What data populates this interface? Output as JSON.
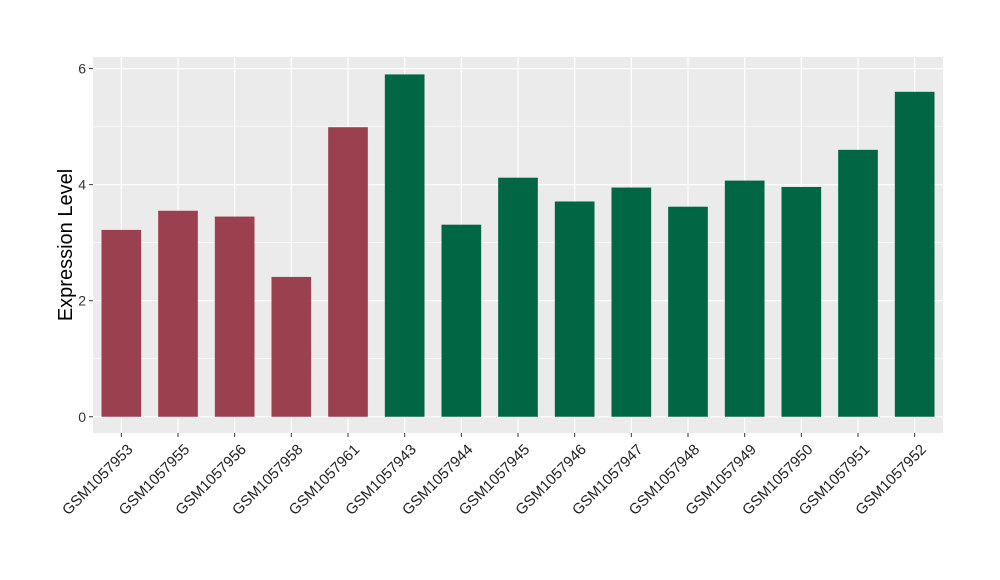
{
  "chart_data": {
    "type": "bar",
    "title": "",
    "xlabel": "",
    "ylabel": "Expression Level",
    "ylim": [
      -0.28,
      6.2
    ],
    "yticks": [
      0,
      2,
      4,
      6
    ],
    "grid": true,
    "legend": "none",
    "categories": [
      "GSM1057953",
      "GSM1057955",
      "GSM1057956",
      "GSM1057958",
      "GSM1057961",
      "GSM1057943",
      "GSM1057944",
      "GSM1057945",
      "GSM1057946",
      "GSM1057947",
      "GSM1057948",
      "GSM1057949",
      "GSM1057950",
      "GSM1057951",
      "GSM1057952"
    ],
    "values": [
      3.22,
      3.55,
      3.45,
      2.41,
      4.99,
      5.9,
      3.31,
      4.12,
      3.71,
      3.95,
      3.62,
      4.07,
      3.96,
      4.6,
      5.6
    ],
    "bar_colors": [
      "#9b404e",
      "#9b404e",
      "#9b404e",
      "#9b404e",
      "#9b404e",
      "#006644",
      "#006644",
      "#006644",
      "#006644",
      "#006644",
      "#006644",
      "#006644",
      "#006644",
      "#006644",
      "#006644"
    ],
    "panel_color": "#ebebeb",
    "grid_color": "#ffffff"
  }
}
